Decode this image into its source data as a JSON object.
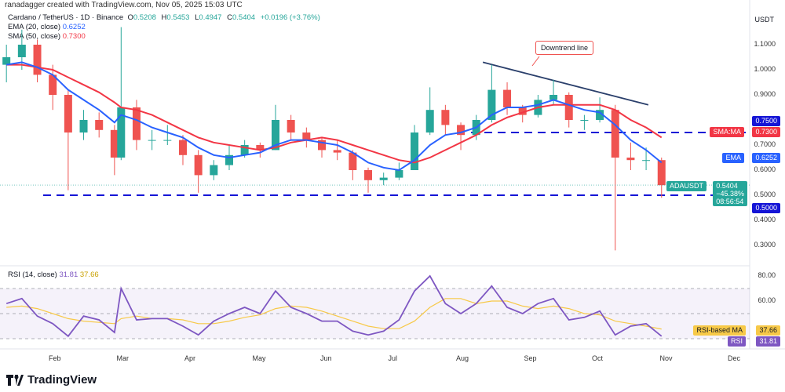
{
  "credit": "ranadagger created with TradingView.com, Nov 05, 2025 15:03 UTC",
  "symbol_line": {
    "name": "Cardano / TetherUS · 1D · Binance",
    "o_label": "O",
    "o": "0.5208",
    "h_label": "H",
    "h": "0.5453",
    "l_label": "L",
    "l": "0.4947",
    "c_label": "C",
    "c": "0.5404",
    "change": "+0.0196 (+3.76%)"
  },
  "indicators": {
    "ema_label": "EMA (20, close)",
    "ema_value": "0.6252",
    "sma_label": "SMA (50, close)",
    "sma_value": "0.7300",
    "rsi_label": "RSI (14, close)",
    "rsi_value": "31.81",
    "rsi_ma_value": "37.66"
  },
  "currency": "USDT",
  "annotation": "Downtrend line",
  "tags": {
    "level_075": "0.7500",
    "sma_name": "SMA:MA",
    "sma_val": "0.7300",
    "ema_name": "EMA",
    "ema_val": "0.6252",
    "symbol": "ADAUSDT",
    "price": "0.5404",
    "pct": "−45.38%",
    "countdown": "08:56:54",
    "level_050": "0.5000",
    "rsi_ma_name": "RSI-based MA",
    "rsi_ma_val": "37.66",
    "rsi_name": "RSI",
    "rsi_val": "31.81"
  },
  "colors": {
    "up": "#26a69a",
    "down": "#ef5350",
    "ema": "#2962ff",
    "sma": "#f23645",
    "rsi": "#7e57c2",
    "rsi_ma": "#f7c948",
    "level": "#1515d6",
    "trend": "#2a3f6b"
  },
  "brand": "TradingView",
  "chart_data": [
    {
      "type": "candlestick",
      "title": "Cardano / TetherUS · 1D · Binance",
      "ylim": [
        0.25,
        1.2
      ],
      "y_ticks": [
        "1.1000",
        "1.0000",
        "0.9000",
        "0.8000",
        "0.7000",
        "0.6000",
        "0.5000",
        "0.4000",
        "0.3000"
      ],
      "x_ticks": [
        "Feb",
        "Mar",
        "Apr",
        "May",
        "Jun",
        "Jul",
        "Aug",
        "Sep",
        "Oct",
        "Nov",
        "Dec"
      ],
      "horizontal_levels": [
        0.75,
        0.5
      ],
      "trendline": [
        [
          "2025-08-14",
          1.03
        ],
        [
          "2025-10-28",
          0.86
        ]
      ],
      "dates": [
        "01-10",
        "01-17",
        "01-24",
        "01-31",
        "02-07",
        "02-14",
        "02-21",
        "02-28",
        "03-03",
        "03-10",
        "03-17",
        "03-24",
        "03-31",
        "04-07",
        "04-14",
        "04-21",
        "04-28",
        "05-05",
        "05-12",
        "05-19",
        "05-26",
        "06-02",
        "06-09",
        "06-16",
        "06-23",
        "06-30",
        "07-07",
        "07-14",
        "07-21",
        "07-28",
        "08-04",
        "08-11",
        "08-18",
        "08-25",
        "09-01",
        "09-08",
        "09-15",
        "09-22",
        "09-29",
        "10-06",
        "10-13",
        "10-20",
        "10-27",
        "11-03"
      ],
      "ohlc": [
        [
          1.02,
          1.1,
          0.95,
          1.05
        ],
        [
          1.05,
          1.16,
          1.0,
          1.1
        ],
        [
          1.1,
          1.12,
          0.95,
          0.98
        ],
        [
          0.98,
          1.02,
          0.84,
          0.9
        ],
        [
          0.9,
          0.92,
          0.52,
          0.75
        ],
        [
          0.75,
          0.84,
          0.72,
          0.8
        ],
        [
          0.8,
          0.83,
          0.73,
          0.76
        ],
        [
          0.76,
          0.78,
          0.58,
          0.65
        ],
        [
          0.65,
          1.17,
          0.64,
          0.85
        ],
        [
          0.85,
          0.88,
          0.68,
          0.72
        ],
        [
          0.72,
          0.76,
          0.68,
          0.72
        ],
        [
          0.72,
          0.78,
          0.7,
          0.72
        ],
        [
          0.72,
          0.74,
          0.62,
          0.66
        ],
        [
          0.66,
          0.68,
          0.51,
          0.58
        ],
        [
          0.58,
          0.64,
          0.56,
          0.62
        ],
        [
          0.62,
          0.7,
          0.6,
          0.66
        ],
        [
          0.66,
          0.72,
          0.65,
          0.7
        ],
        [
          0.7,
          0.71,
          0.65,
          0.68
        ],
        [
          0.68,
          0.86,
          0.68,
          0.8
        ],
        [
          0.8,
          0.82,
          0.72,
          0.75
        ],
        [
          0.75,
          0.77,
          0.69,
          0.72
        ],
        [
          0.72,
          0.73,
          0.65,
          0.68
        ],
        [
          0.68,
          0.72,
          0.64,
          0.67
        ],
        [
          0.67,
          0.68,
          0.56,
          0.6
        ],
        [
          0.6,
          0.61,
          0.51,
          0.56
        ],
        [
          0.56,
          0.59,
          0.54,
          0.57
        ],
        [
          0.57,
          0.63,
          0.56,
          0.6
        ],
        [
          0.6,
          0.78,
          0.6,
          0.75
        ],
        [
          0.75,
          0.93,
          0.74,
          0.84
        ],
        [
          0.84,
          0.86,
          0.74,
          0.78
        ],
        [
          0.78,
          0.79,
          0.68,
          0.74
        ],
        [
          0.74,
          0.82,
          0.72,
          0.8
        ],
        [
          0.8,
          1.02,
          0.79,
          0.92
        ],
        [
          0.92,
          0.95,
          0.82,
          0.85
        ],
        [
          0.85,
          0.86,
          0.79,
          0.82
        ],
        [
          0.82,
          0.9,
          0.81,
          0.88
        ],
        [
          0.88,
          0.96,
          0.86,
          0.9
        ],
        [
          0.9,
          0.91,
          0.77,
          0.8
        ],
        [
          0.8,
          0.82,
          0.76,
          0.8
        ],
        [
          0.8,
          0.89,
          0.79,
          0.84
        ],
        [
          0.84,
          0.86,
          0.28,
          0.65
        ],
        [
          0.65,
          0.71,
          0.6,
          0.64
        ],
        [
          0.64,
          0.69,
          0.6,
          0.64
        ],
        [
          0.64,
          0.65,
          0.49,
          0.54
        ]
      ],
      "series": [
        {
          "name": "EMA (20, close)",
          "values": [
            1.02,
            1.03,
            1.01,
            0.98,
            0.92,
            0.88,
            0.84,
            0.79,
            0.82,
            0.8,
            0.77,
            0.75,
            0.73,
            0.69,
            0.66,
            0.65,
            0.66,
            0.67,
            0.7,
            0.72,
            0.72,
            0.71,
            0.7,
            0.67,
            0.63,
            0.61,
            0.6,
            0.64,
            0.7,
            0.74,
            0.75,
            0.77,
            0.82,
            0.85,
            0.85,
            0.86,
            0.88,
            0.86,
            0.84,
            0.83,
            0.78,
            0.72,
            0.68,
            0.63
          ]
        },
        {
          "name": "SMA (50, close)",
          "values": [
            1.02,
            1.02,
            1.01,
            1.0,
            0.97,
            0.94,
            0.91,
            0.87,
            0.85,
            0.84,
            0.82,
            0.79,
            0.76,
            0.73,
            0.71,
            0.7,
            0.69,
            0.68,
            0.69,
            0.71,
            0.72,
            0.73,
            0.72,
            0.7,
            0.68,
            0.66,
            0.64,
            0.63,
            0.65,
            0.68,
            0.71,
            0.74,
            0.78,
            0.81,
            0.83,
            0.85,
            0.86,
            0.86,
            0.86,
            0.86,
            0.84,
            0.8,
            0.77,
            0.73
          ]
        }
      ]
    },
    {
      "type": "line",
      "title": "RSI (14, close)",
      "ylim": [
        25,
        85
      ],
      "y_ticks": [
        "80.00",
        "60.00"
      ],
      "bands": [
        30,
        50,
        70
      ],
      "series": [
        {
          "name": "RSI",
          "values": [
            58,
            62,
            48,
            42,
            32,
            48,
            45,
            35,
            70,
            45,
            46,
            46,
            40,
            33,
            44,
            50,
            55,
            50,
            68,
            55,
            50,
            44,
            44,
            36,
            33,
            36,
            45,
            68,
            80,
            58,
            50,
            58,
            72,
            55,
            50,
            58,
            62,
            45,
            47,
            52,
            33,
            40,
            42,
            32
          ]
        },
        {
          "name": "RSI-based MA",
          "values": [
            55,
            56,
            54,
            50,
            46,
            44,
            43,
            42,
            46,
            48,
            46,
            46,
            45,
            42,
            42,
            44,
            47,
            49,
            54,
            56,
            55,
            52,
            48,
            44,
            40,
            38,
            38,
            44,
            55,
            62,
            62,
            58,
            60,
            60,
            56,
            54,
            56,
            54,
            50,
            49,
            44,
            42,
            40,
            37.66
          ]
        }
      ]
    }
  ]
}
